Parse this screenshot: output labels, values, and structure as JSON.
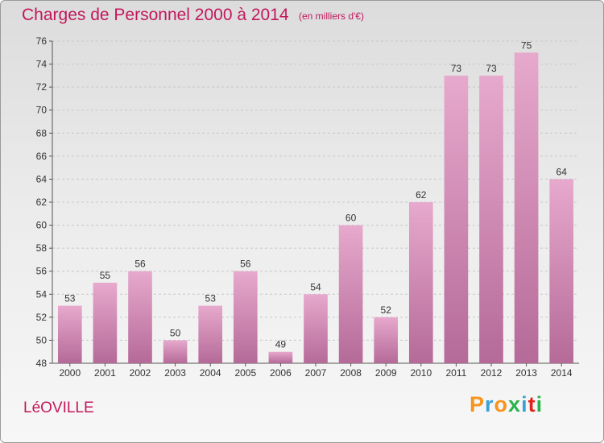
{
  "header": {
    "title": "Charges de Personnel 2000 à 2014",
    "subtitle": "(en milliers d'€)"
  },
  "footer": {
    "commune": "LéOVILLE",
    "logo": {
      "letters": [
        "P",
        "r",
        "o",
        "x",
        "i",
        "t",
        "i"
      ],
      "colors": [
        "#f7941d",
        "#3aa0d8",
        "#f7941d",
        "#2bb34b",
        "#3aa0d8",
        "#e2231a",
        "#2bb34b"
      ]
    }
  },
  "colors": {
    "bar_light": "#e7a9cd",
    "bar_dark": "#b56a98",
    "accent": "#c2185b"
  },
  "chart_data": {
    "type": "bar",
    "categories": [
      "2000",
      "2001",
      "2002",
      "2003",
      "2004",
      "2005",
      "2006",
      "2007",
      "2008",
      "2009",
      "2010",
      "2011",
      "2012",
      "2013",
      "2014"
    ],
    "values": [
      53,
      55,
      56,
      50,
      53,
      56,
      49,
      54,
      60,
      52,
      62,
      73,
      73,
      75,
      64
    ],
    "ylim": [
      48,
      76
    ],
    "yticks": [
      "48",
      "50",
      "52",
      "54",
      "56",
      "58",
      "60",
      "62",
      "64",
      "66",
      "68",
      "70",
      "72",
      "74",
      "76"
    ],
    "grid": true,
    "title": "Charges de Personnel 2000 à 2014"
  }
}
